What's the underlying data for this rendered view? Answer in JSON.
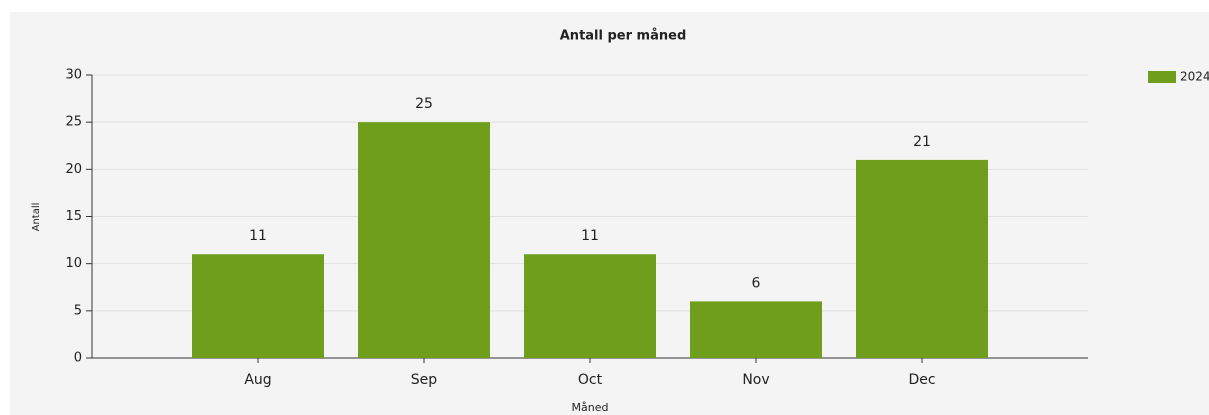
{
  "chart_data": {
    "type": "bar",
    "title": "Antall per måned",
    "x_label": "Måned",
    "y_label": "Antall",
    "categories": [
      "Aug",
      "Sep",
      "Oct",
      "Nov",
      "Dec"
    ],
    "series": [
      {
        "name": "2024",
        "color": "#6f9e1c",
        "values": [
          11,
          25,
          11,
          6,
          21
        ]
      }
    ],
    "ylim": [
      0,
      30
    ],
    "yticks": [
      0,
      5,
      10,
      15,
      20,
      25,
      30
    ],
    "grid": true,
    "legend": "top-right"
  }
}
